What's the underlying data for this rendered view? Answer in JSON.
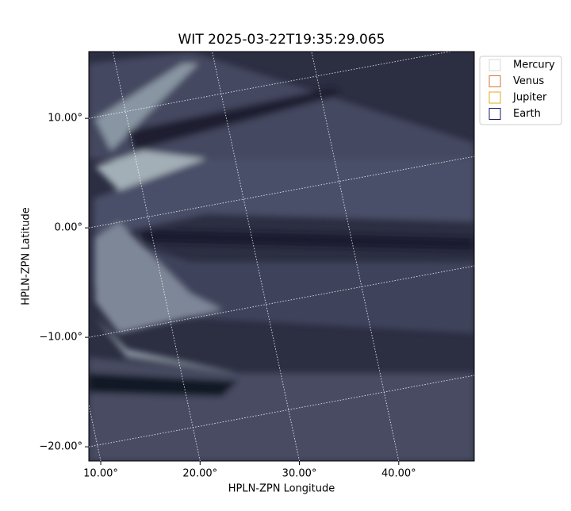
{
  "chart_data": {
    "type": "image",
    "title": "WIT 2025-03-22T19:35:29.065",
    "xlabel": "HPLN-ZPN Longitude",
    "ylabel": "HPLN-ZPN Latitude",
    "xlim": [
      8.8,
      47.6
    ],
    "ylim": [
      -21.3,
      16.1
    ],
    "xticks": [
      {
        "value": 10,
        "label": "10.00°"
      },
      {
        "value": 20,
        "label": "20.00°"
      },
      {
        "value": 30,
        "label": "30.00°"
      },
      {
        "value": 40,
        "label": "40.00°"
      }
    ],
    "yticks": [
      {
        "value": 10,
        "label": "10.00°"
      },
      {
        "value": 0,
        "label": "0.00°"
      },
      {
        "value": -10,
        "label": "−10.00°"
      },
      {
        "value": -20,
        "label": "−20.00°"
      }
    ],
    "grid": true,
    "legend": [
      {
        "name": "Mercury",
        "color": "#d8d8d8"
      },
      {
        "name": "Venus",
        "color": "#d9733a"
      },
      {
        "name": "Jupiter",
        "color": "#e3a81c"
      },
      {
        "name": "Earth",
        "color": "#1c1c6e"
      }
    ]
  }
}
